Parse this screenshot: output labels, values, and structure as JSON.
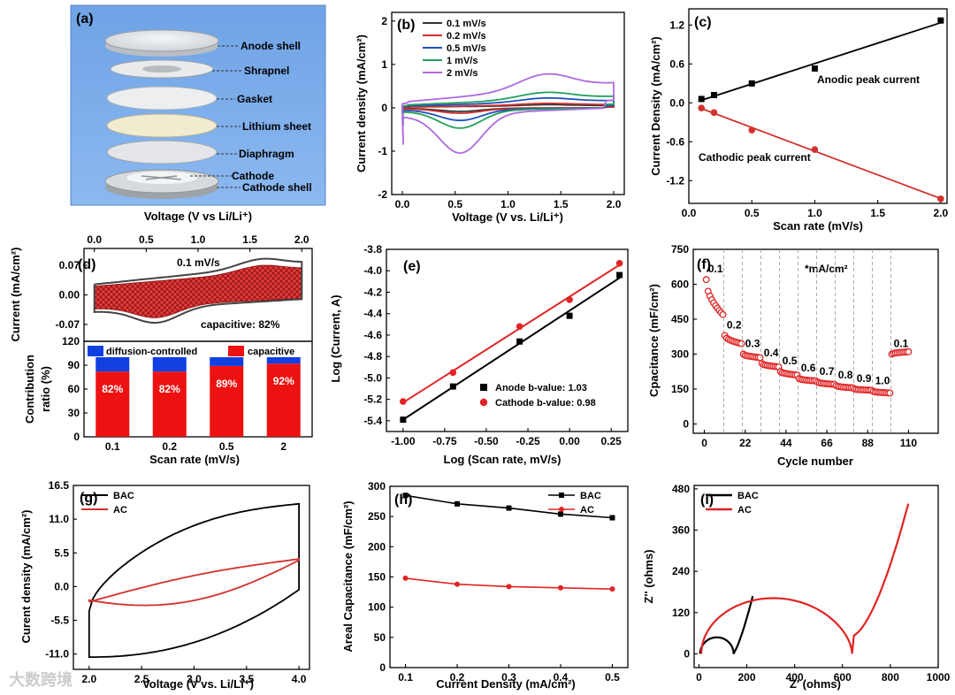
{
  "watermark": "大数跨境",
  "chart_data": [
    {
      "id": "a",
      "type": "diagram",
      "panel_label": "(a)",
      "labels": [
        "Anode shell",
        "Shrapnel",
        "Gasket",
        "Lithium sheet",
        "Diaphragm",
        "Cathode",
        "Cathode shell"
      ]
    },
    {
      "id": "b",
      "type": "line",
      "panel_label": "(b)",
      "xlabel": "Voltage (V vs. Li/Li⁺)",
      "ylabel": "Current density (mA/cm²)",
      "xlim": [
        -0.1,
        2.1
      ],
      "ylim": [
        -2,
        2.2
      ],
      "xticks": [
        "0.0",
        "0.5",
        "1.0",
        "1.5",
        "2.0"
      ],
      "yticks": [
        "-2",
        "-1",
        "0",
        "1",
        "2"
      ],
      "series": [
        {
          "name": "0.1 mV/s",
          "color": "#333333",
          "scale": 0.08
        },
        {
          "name": "0.2 mV/s",
          "color": "#d0312d",
          "scale": 0.12
        },
        {
          "name": "0.5 mV/s",
          "color": "#1f4fbf",
          "scale": 0.28
        },
        {
          "name": "1 mV/s",
          "color": "#22a05a",
          "scale": 0.45
        },
        {
          "name": "2 mV/s",
          "color": "#b06adf",
          "scale": 1.0
        }
      ]
    },
    {
      "id": "c",
      "type": "scatter",
      "panel_label": "(c)",
      "xlabel": "Scan rate (mV/s)",
      "ylabel": "Current Density (mA/cm²)",
      "xlim": [
        0,
        2.05
      ],
      "ylim": [
        -1.55,
        1.45
      ],
      "xticks": [
        "0.0",
        "0.5",
        "1.0",
        "1.5",
        "2.0"
      ],
      "yticks": [
        "1.2",
        "0.6",
        "0.0",
        "-0.6",
        "-1.2"
      ],
      "series": [
        {
          "name": "Anodic peak current",
          "color": "#000000",
          "x": [
            0.1,
            0.2,
            0.5,
            1.0,
            2.0
          ],
          "y": [
            0.06,
            0.12,
            0.3,
            0.53,
            1.27
          ]
        },
        {
          "name": "Cathodic peak current",
          "color": "#d0312d",
          "x": [
            0.1,
            0.2,
            0.5,
            1.0,
            2.0
          ],
          "y": [
            -0.08,
            -0.15,
            -0.42,
            -0.72,
            -1.48
          ]
        }
      ]
    },
    {
      "id": "d1",
      "type": "line",
      "panel_label": "(d)",
      "xlabel": "Voltage (V vs Li/Li⁺)",
      "ylabel": "Current (mA/cm²)",
      "xlim": [
        -0.1,
        2.1
      ],
      "ylim": [
        -0.11,
        0.11
      ],
      "xticks": [
        "0.0",
        "0.5",
        "1.0",
        "1.5",
        "2.0"
      ],
      "yticks": [
        "0.07",
        "0.00",
        "-0.07"
      ],
      "annotations": [
        "0.1 mV/s",
        "capacitive: 82%"
      ]
    },
    {
      "id": "d2",
      "type": "bar",
      "xlabel": "Scan rate (mV/s)",
      "ylabel": "Contribution ratio (%)",
      "ylim": [
        0,
        120
      ],
      "categories": [
        "0.1",
        "0.2",
        "0.5",
        "2"
      ],
      "yticks": [
        "0",
        "30",
        "60",
        "90",
        "120"
      ],
      "series": [
        {
          "name": "capacitive",
          "color": "#ee1111",
          "values": [
            82,
            82,
            89,
            92
          ]
        },
        {
          "name": "diffusion-controlled",
          "color": "#1040e0",
          "values": [
            18,
            18,
            11,
            8
          ]
        }
      ],
      "bar_labels": [
        "82%",
        "82%",
        "89%",
        "92%"
      ]
    },
    {
      "id": "e",
      "type": "scatter",
      "panel_label": "(e)",
      "xlabel": "Log (Scan rate, mV/s)",
      "ylabel": "Log (Current, A)",
      "xlim": [
        -1.1,
        0.35
      ],
      "ylim": [
        -5.5,
        -3.8
      ],
      "xticks": [
        "-1.00",
        "-0.75",
        "-0.50",
        "-0.25",
        "0.00",
        "0.25"
      ],
      "yticks": [
        "-3.8",
        "-4.0",
        "-4.2",
        "-4.4",
        "-4.6",
        "-4.8",
        "-5.0",
        "-5.2",
        "-5.4"
      ],
      "series": [
        {
          "name": "Anode b-value: 1.03",
          "color": "#000000",
          "x": [
            -1.0,
            -0.7,
            -0.3,
            0.0,
            0.3
          ],
          "y": [
            -5.39,
            -5.08,
            -4.66,
            -4.42,
            -4.04
          ]
        },
        {
          "name": "Cathode b-value: 0.98",
          "color": "#e02424",
          "x": [
            -1.0,
            -0.7,
            -0.3,
            0.0,
            0.3
          ],
          "y": [
            -5.22,
            -4.95,
            -4.52,
            -4.27,
            -3.93
          ]
        }
      ]
    },
    {
      "id": "f",
      "type": "scatter",
      "panel_label": "(f)",
      "xlabel": "Cycle number",
      "ylabel": "Cpacitance (mF/cm²)",
      "xlim": [
        -6,
        126
      ],
      "ylim": [
        -40,
        750
      ],
      "xticks": [
        "0",
        "22",
        "44",
        "66",
        "88",
        "110"
      ],
      "yticks": [
        "750",
        "600",
        "450",
        "300",
        "150",
        "0"
      ],
      "unit_note": "*mA/cm²",
      "segments": [
        {
          "label": "0.1",
          "start": 620,
          "end": 470
        },
        {
          "label": "0.2",
          "start": 380,
          "end": 345
        },
        {
          "label": "0.3",
          "start": 300,
          "end": 285
        },
        {
          "label": "0.4",
          "start": 260,
          "end": 245
        },
        {
          "label": "0.5",
          "start": 225,
          "end": 210
        },
        {
          "label": "0.6",
          "start": 195,
          "end": 185
        },
        {
          "label": "0.7",
          "start": 180,
          "end": 170
        },
        {
          "label": "0.8",
          "start": 165,
          "end": 155
        },
        {
          "label": "0.9",
          "start": 150,
          "end": 145
        },
        {
          "label": "1.0",
          "start": 140,
          "end": 133
        },
        {
          "label": "0.1",
          "start": 300,
          "end": 310
        }
      ]
    },
    {
      "id": "g",
      "type": "line",
      "panel_label": "(g)",
      "xlabel": "Voltage (V vs. Li/Li⁺)",
      "ylabel": "Curent density (mA/cm²)",
      "xlim": [
        1.85,
        4.1
      ],
      "ylim": [
        -13.5,
        16.5
      ],
      "xticks": [
        "2.0",
        "2.5",
        "3.0",
        "3.5",
        "4.0"
      ],
      "yticks": [
        "16.5",
        "11.0",
        "5.5",
        "0.0",
        "-5.5",
        "-11.0"
      ],
      "series": [
        {
          "name": "BAC",
          "color": "#000000"
        },
        {
          "name": "AC",
          "color": "#d0312d"
        }
      ]
    },
    {
      "id": "h",
      "type": "line",
      "panel_label": "(h)",
      "xlabel": "Current Density (mA/cm²)",
      "ylabel": "Areal Capacitance (mF/cm²)",
      "xlim": [
        0.07,
        0.53
      ],
      "ylim": [
        0,
        300
      ],
      "xticks": [
        "0.1",
        "0.2",
        "0.3",
        "0.4",
        "0.5"
      ],
      "yticks": [
        "300",
        "250",
        "200",
        "150",
        "100",
        "50",
        "0"
      ],
      "x": [
        0.1,
        0.2,
        0.3,
        0.4,
        0.5
      ],
      "series": [
        {
          "name": "BAC",
          "color": "#000000",
          "values": [
            285,
            271,
            264,
            254,
            248
          ]
        },
        {
          "name": "AC",
          "color": "#e02424",
          "values": [
            148,
            138,
            134,
            132,
            130
          ]
        }
      ]
    },
    {
      "id": "i",
      "type": "line",
      "panel_label": "(i)",
      "xlabel": "Z' (ohms)",
      "ylabel": "Z'' (ohms)",
      "xlim": [
        -20,
        1000
      ],
      "ylim": [
        -40,
        490
      ],
      "xticks": [
        "0",
        "200",
        "400",
        "600",
        "800",
        "1000"
      ],
      "yticks": [
        "480",
        "360",
        "240",
        "120",
        "0"
      ],
      "series": [
        {
          "name": "BAC",
          "color": "#000000"
        },
        {
          "name": "AC",
          "color": "#e02424"
        }
      ]
    }
  ]
}
